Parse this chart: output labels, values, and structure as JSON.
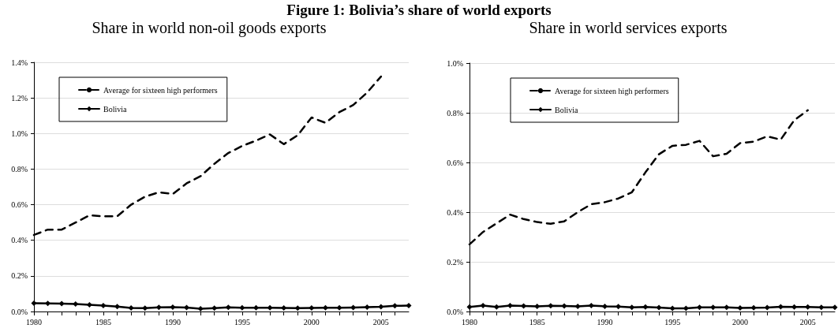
{
  "chart_data": [
    {
      "type": "line",
      "title": "Figure 1:  Bolivia’s share of world exports",
      "subtitle": "Share in world non-oil goods exports",
      "x": [
        1980,
        1981,
        1982,
        1983,
        1984,
        1985,
        1986,
        1987,
        1988,
        1989,
        1990,
        1991,
        1992,
        1993,
        1994,
        1995,
        1996,
        1997,
        1998,
        1999,
        2000,
        2001,
        2002,
        2003,
        2004,
        2005,
        2006,
        2007
      ],
      "series": [
        {
          "name": "Average for sixteen high performers",
          "color": "#000000",
          "line_style": "dashed",
          "marker": "none",
          "values": [
            0.43,
            0.46,
            0.46,
            0.5,
            0.54,
            0.535,
            0.535,
            0.6,
            0.645,
            0.67,
            0.66,
            0.72,
            0.76,
            0.83,
            0.89,
            0.93,
            0.96,
            0.995,
            0.94,
            0.99,
            1.09,
            1.06,
            1.12,
            1.16,
            1.23,
            1.32,
            null,
            null
          ]
        },
        {
          "name": "Bolivia",
          "color": "#000000",
          "line_style": "solid",
          "marker": "diamond",
          "values": [
            0.047,
            0.045,
            0.044,
            0.042,
            0.038,
            0.033,
            0.028,
            0.02,
            0.019,
            0.023,
            0.024,
            0.022,
            0.016,
            0.019,
            0.023,
            0.021,
            0.021,
            0.021,
            0.02,
            0.019,
            0.02,
            0.021,
            0.021,
            0.022,
            0.024,
            0.027,
            0.032,
            0.033
          ]
        }
      ],
      "xlim": [
        1980,
        2007
      ],
      "xticks": [
        1980,
        1985,
        1990,
        1995,
        2000,
        2005
      ],
      "ylim": [
        0,
        1.4
      ],
      "yticks": [
        {
          "value": 0,
          "label": "0.0%"
        },
        {
          "value": 0.2,
          "label": "0.2%"
        },
        {
          "value": 0.4,
          "label": "0.4%"
        },
        {
          "value": 0.6,
          "label": "0.6%"
        },
        {
          "value": 0.8,
          "label": "0.8%"
        },
        {
          "value": 1.0,
          "label": "1.0%"
        },
        {
          "value": 1.2,
          "label": "1.2%"
        },
        {
          "value": 1.4,
          "label": "1.4%"
        }
      ],
      "grid": "y",
      "legend": "top left"
    },
    {
      "type": "line",
      "subtitle": "Share in world services exports",
      "x": [
        1980,
        1981,
        1982,
        1983,
        1984,
        1985,
        1986,
        1987,
        1988,
        1989,
        1990,
        1991,
        1992,
        1993,
        1994,
        1995,
        1996,
        1997,
        1998,
        1999,
        2000,
        2001,
        2002,
        2003,
        2004,
        2005,
        2006,
        2007
      ],
      "series": [
        {
          "name": "Average for sixteen high performers",
          "color": "#000000",
          "line_style": "dashed",
          "marker": "none",
          "values": [
            0.27,
            0.32,
            0.355,
            0.39,
            0.372,
            0.36,
            0.353,
            0.363,
            0.4,
            0.432,
            0.44,
            0.455,
            0.48,
            0.56,
            0.633,
            0.667,
            0.671,
            0.687,
            0.625,
            0.635,
            0.678,
            0.684,
            0.705,
            0.692,
            0.77,
            0.81,
            null,
            null
          ]
        },
        {
          "name": "Bolivia",
          "color": "#000000",
          "line_style": "solid",
          "marker": "diamond",
          "values": [
            0.018,
            0.024,
            0.018,
            0.024,
            0.022,
            0.021,
            0.023,
            0.022,
            0.021,
            0.024,
            0.021,
            0.02,
            0.017,
            0.018,
            0.016,
            0.013,
            0.013,
            0.017,
            0.017,
            0.017,
            0.014,
            0.015,
            0.016,
            0.019,
            0.018,
            0.018,
            0.017,
            0.017
          ]
        }
      ],
      "xlim": [
        1980,
        2007
      ],
      "xticks": [
        1980,
        1985,
        1990,
        1995,
        2000,
        2005
      ],
      "ylim": [
        0,
        1.0
      ],
      "yticks": [
        {
          "value": 0,
          "label": "0.0%"
        },
        {
          "value": 0.2,
          "label": "0.2%"
        },
        {
          "value": 0.4,
          "label": "0.4%"
        },
        {
          "value": 0.6,
          "label": "0.6%"
        },
        {
          "value": 0.8,
          "label": "0.8%"
        },
        {
          "value": 1.0,
          "label": "1.0%"
        }
      ],
      "grid": "y",
      "legend": "top left"
    }
  ]
}
